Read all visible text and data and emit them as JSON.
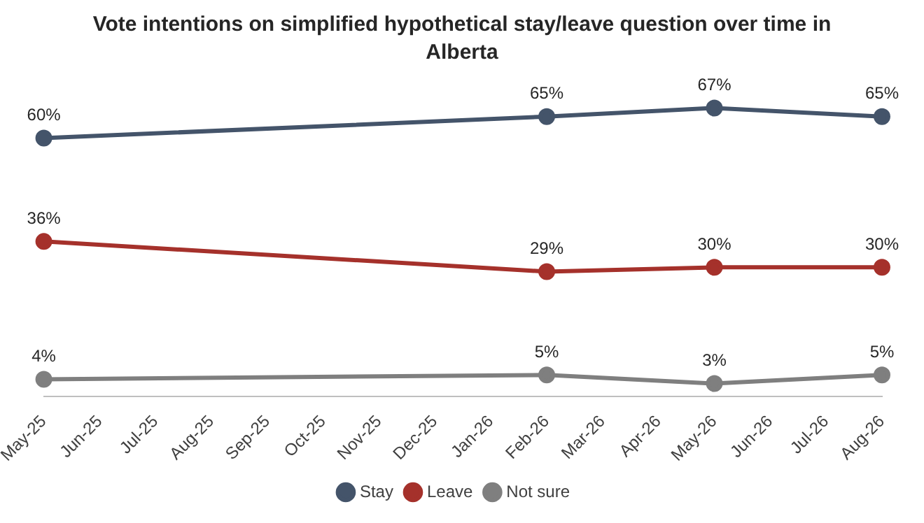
{
  "chart_data": {
    "type": "line",
    "title": "Vote intentions on simplified hypothetical stay/leave question over time in Alberta",
    "categories": [
      "May-25",
      "Jun-25",
      "Jul-25",
      "Aug-25",
      "Sep-25",
      "Oct-25",
      "Nov-25",
      "Dec-25",
      "Jan-26",
      "Feb-26",
      "Mar-26",
      "Apr-26",
      "May-26",
      "Jun-26",
      "Jul-26",
      "Aug-26"
    ],
    "series": [
      {
        "name": "Stay",
        "color": "#44546a",
        "values": [
          60,
          null,
          null,
          null,
          null,
          null,
          null,
          null,
          null,
          65,
          null,
          null,
          67,
          null,
          null,
          65
        ],
        "value_labels": [
          "60%",
          null,
          null,
          null,
          null,
          null,
          null,
          null,
          null,
          "65%",
          null,
          null,
          "67%",
          null,
          null,
          "65%"
        ]
      },
      {
        "name": "Leave",
        "color": "#a5312b",
        "values": [
          36,
          null,
          null,
          null,
          null,
          null,
          null,
          null,
          null,
          29,
          null,
          null,
          30,
          null,
          null,
          30
        ],
        "value_labels": [
          "36%",
          null,
          null,
          null,
          null,
          null,
          null,
          null,
          null,
          "29%",
          null,
          null,
          "30%",
          null,
          null,
          "30%"
        ]
      },
      {
        "name": "Not sure",
        "color": "#7f7f7f",
        "values": [
          4,
          null,
          null,
          null,
          null,
          null,
          null,
          null,
          null,
          5,
          null,
          null,
          3,
          null,
          null,
          5
        ],
        "value_labels": [
          "4%",
          null,
          null,
          null,
          null,
          null,
          null,
          null,
          null,
          "5%",
          null,
          null,
          "3%",
          null,
          null,
          "5%"
        ]
      }
    ],
    "legend": "bottom",
    "marker": "circle",
    "line_style": "solid",
    "grid": false
  }
}
